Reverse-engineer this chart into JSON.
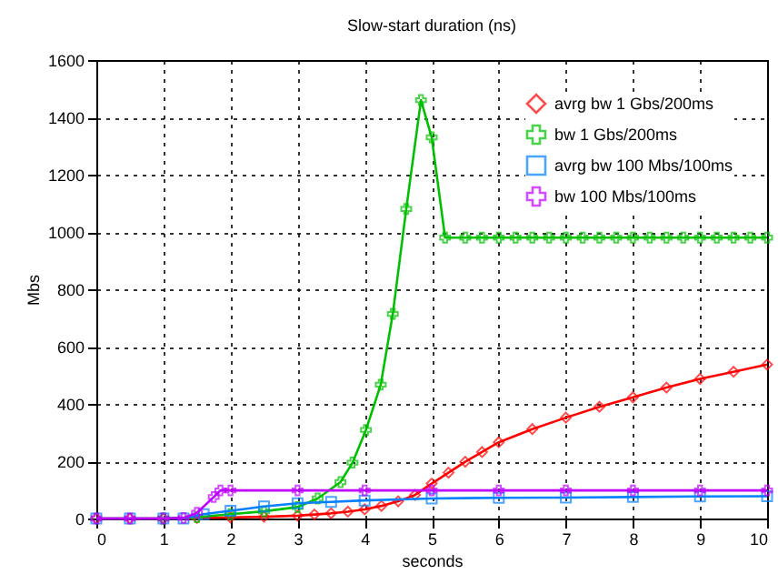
{
  "chart_data": {
    "type": "line",
    "title": "Slow-start duration (ns)",
    "xlabel": "seconds",
    "ylabel": "Mbs",
    "xlim": [
      0,
      10
    ],
    "ylim": [
      0,
      1600
    ],
    "xticks": [
      0,
      1,
      2,
      3,
      4,
      5,
      6,
      7,
      8,
      9,
      10
    ],
    "yticks": [
      0,
      200,
      400,
      600,
      800,
      1000,
      1200,
      1400,
      1600
    ],
    "grid": true,
    "legend": "top right",
    "line_style": "solid",
    "series": [
      {
        "name": "avrg bw 1 Gbs/200ms",
        "color": "#ff0000",
        "marker": "diamond",
        "x": [
          0,
          0.5,
          1,
          1.5,
          2,
          2.5,
          3,
          3.25,
          3.5,
          3.75,
          4,
          4.25,
          4.5,
          4.75,
          5,
          5.25,
          5.5,
          5.75,
          6,
          6.5,
          7,
          7.5,
          8,
          8.5,
          9,
          9.5,
          10
        ],
        "values": [
          0,
          0,
          0,
          2,
          4,
          6,
          10,
          14,
          18,
          24,
          32,
          44,
          60,
          82,
          122,
          160,
          198,
          232,
          266,
          312,
          352,
          390,
          423,
          457,
          487,
          512,
          537
        ]
      },
      {
        "name": "bw 1 Gbs/200ms",
        "color": "#00c000",
        "marker": "cross",
        "x": [
          1,
          1.5,
          2,
          2.5,
          3,
          3.3,
          3.64,
          3.82,
          4.02,
          4.24,
          4.42,
          4.62,
          4.84,
          5.0,
          5.2,
          5.5,
          5.75,
          6,
          6.25,
          6.5,
          6.75,
          7,
          7.25,
          7.5,
          7.75,
          8,
          8.25,
          8.5,
          8.75,
          9,
          9.25,
          9.5,
          9.75,
          10
        ],
        "values": [
          0,
          5,
          15,
          25,
          40,
          70,
          127,
          195,
          309,
          467,
          714,
          1080,
          1460,
          1330,
          980,
          980,
          980,
          980,
          980,
          980,
          980,
          980,
          980,
          980,
          980,
          980,
          980,
          980,
          980,
          980,
          980,
          980,
          980,
          980
        ]
      },
      {
        "name": "avrg bw 100 Mbs/100ms",
        "color": "#0080ff",
        "marker": "square",
        "x": [
          0,
          0.5,
          1,
          1.3,
          1.6,
          2,
          2.5,
          3,
          3.5,
          4,
          5,
          6,
          7,
          8,
          9,
          10
        ],
        "values": [
          0,
          0,
          0,
          0,
          15,
          27,
          42,
          53,
          58,
          63,
          70,
          72,
          73,
          75,
          77,
          78
        ]
      },
      {
        "name": "bw 100 Mbs/100ms",
        "color": "#c000ff",
        "marker": "cross",
        "x": [
          0,
          0.5,
          1,
          1.3,
          1.5,
          1.75,
          1.85,
          2,
          3,
          4,
          5,
          6,
          7,
          8,
          9,
          10
        ],
        "values": [
          0,
          0,
          0,
          2,
          20,
          75,
          98,
          98,
          98,
          98,
          98,
          98,
          98,
          98,
          98,
          98
        ]
      }
    ]
  }
}
